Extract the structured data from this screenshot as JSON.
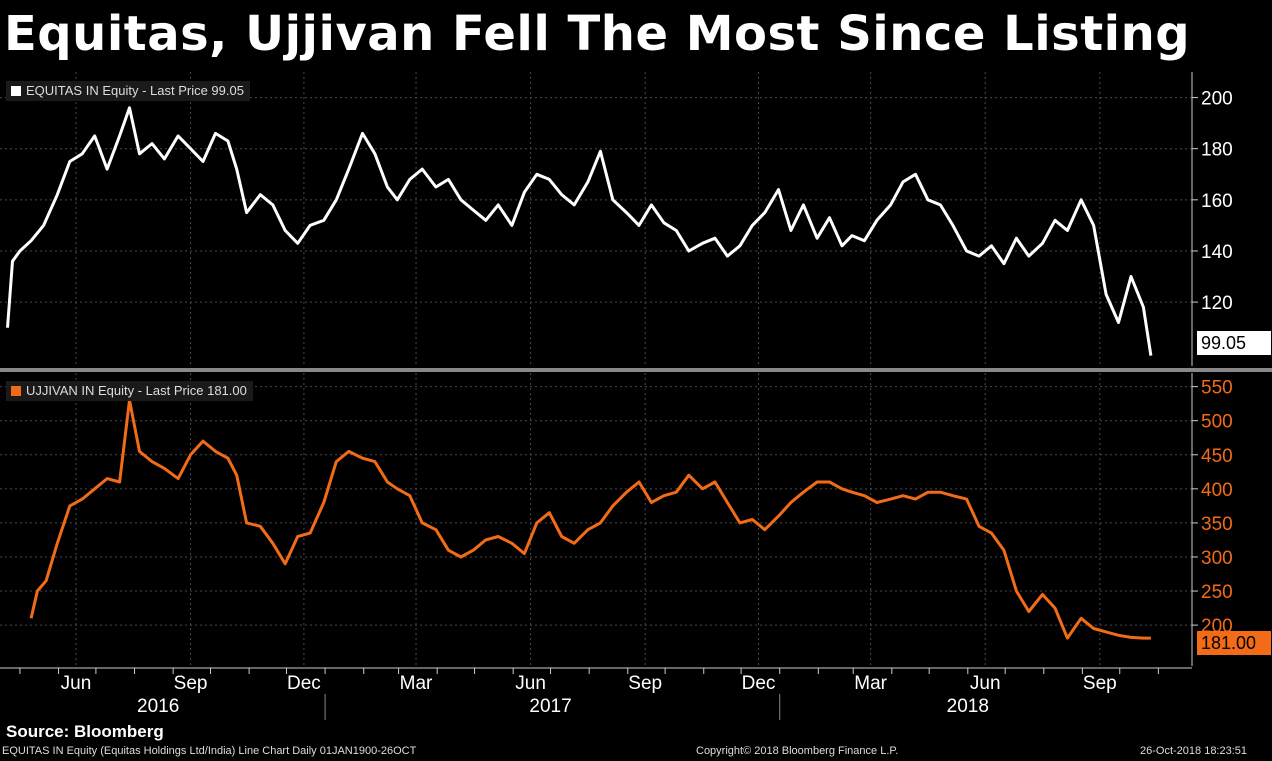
{
  "title": "Equitas, Ujjivan Fell The Most Since Listing",
  "source": "Source: Bloomberg",
  "footer": {
    "left": "EQUITAS IN Equity (Equitas Holdings Ltd/India) Line Chart  Daily 01JAN1900-26OCT",
    "middle": "Copyright© 2018 Bloomberg Finance L.P.",
    "right": "26-Oct-2018 18:23:51"
  },
  "colors": {
    "equitas": "#ffffff",
    "ujjivan": "#f26b16",
    "background": "#000000",
    "grid": "#555555",
    "divider": "#888888"
  },
  "chart_data": [
    {
      "type": "line",
      "series": [
        {
          "name": "EQUITAS IN Equity - Last Price 99.05",
          "color": "#ffffff"
        }
      ],
      "legend": "EQUITAS IN Equity - Last Price 99.05",
      "last_value_label": "99.05",
      "ylim": [
        95,
        210
      ],
      "yticks": [
        120,
        140,
        160,
        180,
        200
      ],
      "x": [
        "2016-04-21",
        "2016-04-25",
        "2016-05-01",
        "2016-05-10",
        "2016-05-20",
        "2016-05-31",
        "2016-06-10",
        "2016-06-20",
        "2016-06-30",
        "2016-07-10",
        "2016-07-20",
        "2016-07-28",
        "2016-08-05",
        "2016-08-15",
        "2016-08-25",
        "2016-09-05",
        "2016-09-15",
        "2016-09-25",
        "2016-10-05",
        "2016-10-15",
        "2016-10-22",
        "2016-10-30",
        "2016-11-10",
        "2016-11-20",
        "2016-11-30",
        "2016-12-10",
        "2016-12-20",
        "2016-12-31",
        "2017-01-10",
        "2017-01-20",
        "2017-01-31",
        "2017-02-10",
        "2017-02-20",
        "2017-02-28",
        "2017-03-10",
        "2017-03-20",
        "2017-03-31",
        "2017-04-10",
        "2017-04-20",
        "2017-04-30",
        "2017-05-10",
        "2017-05-20",
        "2017-05-31",
        "2017-06-10",
        "2017-06-20",
        "2017-06-30",
        "2017-07-10",
        "2017-07-20",
        "2017-07-31",
        "2017-08-10",
        "2017-08-20",
        "2017-08-31",
        "2017-09-10",
        "2017-09-20",
        "2017-09-30",
        "2017-10-10",
        "2017-10-20",
        "2017-10-31",
        "2017-11-10",
        "2017-11-20",
        "2017-11-30",
        "2017-12-10",
        "2017-12-20",
        "2017-12-31",
        "2018-01-10",
        "2018-01-20",
        "2018-01-31",
        "2018-02-10",
        "2018-02-20",
        "2018-02-28",
        "2018-03-10",
        "2018-03-20",
        "2018-03-31",
        "2018-04-10",
        "2018-04-20",
        "2018-04-30",
        "2018-05-10",
        "2018-05-20",
        "2018-05-31",
        "2018-06-10",
        "2018-06-20",
        "2018-06-30",
        "2018-07-10",
        "2018-07-20",
        "2018-07-31",
        "2018-08-10",
        "2018-08-20",
        "2018-08-31",
        "2018-09-10",
        "2018-09-20",
        "2018-09-30",
        "2018-10-10",
        "2018-10-20",
        "2018-10-26"
      ],
      "values": [
        110,
        136,
        140,
        144,
        150,
        162,
        175,
        178,
        185,
        172,
        185,
        196,
        178,
        182,
        176,
        185,
        180,
        175,
        186,
        183,
        172,
        155,
        162,
        158,
        148,
        143,
        150,
        152,
        160,
        172,
        186,
        178,
        165,
        160,
        168,
        172,
        165,
        168,
        160,
        156,
        152,
        158,
        150,
        163,
        170,
        168,
        162,
        158,
        167,
        179,
        160,
        155,
        150,
        158,
        151,
        148,
        140,
        143,
        145,
        138,
        142,
        150,
        155,
        164,
        148,
        158,
        145,
        153,
        142,
        146,
        144,
        152,
        158,
        167,
        170,
        160,
        158,
        150,
        140,
        138,
        142,
        135,
        145,
        138,
        143,
        152,
        148,
        160,
        150,
        123,
        112,
        130,
        118,
        99.05
      ]
    },
    {
      "type": "line",
      "series": [
        {
          "name": "UJJIVAN IN Equity - Last Price 181.00",
          "color": "#f26b16"
        }
      ],
      "legend": "UJJIVAN IN Equity - Last Price 181.00",
      "last_value_label": "181.00",
      "ylim": [
        140,
        570
      ],
      "yticks": [
        200,
        250,
        300,
        350,
        400,
        450,
        500,
        550
      ],
      "x": [
        "2016-05-10",
        "2016-05-15",
        "2016-05-22",
        "2016-05-31",
        "2016-06-10",
        "2016-06-20",
        "2016-06-30",
        "2016-07-10",
        "2016-07-20",
        "2016-07-28",
        "2016-08-05",
        "2016-08-15",
        "2016-08-25",
        "2016-09-05",
        "2016-09-15",
        "2016-09-25",
        "2016-10-05",
        "2016-10-15",
        "2016-10-22",
        "2016-10-30",
        "2016-11-10",
        "2016-11-20",
        "2016-11-30",
        "2016-12-10",
        "2016-12-20",
        "2016-12-31",
        "2017-01-10",
        "2017-01-20",
        "2017-01-31",
        "2017-02-10",
        "2017-02-20",
        "2017-02-28",
        "2017-03-10",
        "2017-03-20",
        "2017-03-31",
        "2017-04-10",
        "2017-04-20",
        "2017-04-30",
        "2017-05-10",
        "2017-05-20",
        "2017-05-31",
        "2017-06-10",
        "2017-06-20",
        "2017-06-30",
        "2017-07-10",
        "2017-07-20",
        "2017-07-31",
        "2017-08-10",
        "2017-08-20",
        "2017-08-31",
        "2017-09-10",
        "2017-09-20",
        "2017-09-30",
        "2017-10-10",
        "2017-10-20",
        "2017-10-31",
        "2017-11-10",
        "2017-11-20",
        "2017-11-30",
        "2017-12-10",
        "2017-12-20",
        "2017-12-31",
        "2018-01-10",
        "2018-01-20",
        "2018-01-31",
        "2018-02-10",
        "2018-02-20",
        "2018-02-28",
        "2018-03-10",
        "2018-03-20",
        "2018-03-31",
        "2018-04-10",
        "2018-04-20",
        "2018-04-30",
        "2018-05-10",
        "2018-05-20",
        "2018-05-31",
        "2018-06-10",
        "2018-06-20",
        "2018-06-30",
        "2018-07-10",
        "2018-07-20",
        "2018-07-31",
        "2018-08-10",
        "2018-08-20",
        "2018-08-31",
        "2018-09-10",
        "2018-09-20",
        "2018-09-30",
        "2018-10-10",
        "2018-10-20",
        "2018-10-26"
      ],
      "values": [
        210,
        250,
        265,
        320,
        375,
        385,
        400,
        415,
        410,
        530,
        455,
        440,
        430,
        415,
        450,
        470,
        455,
        445,
        420,
        350,
        345,
        320,
        290,
        330,
        335,
        380,
        440,
        455,
        445,
        440,
        410,
        400,
        390,
        350,
        340,
        310,
        300,
        310,
        325,
        330,
        320,
        305,
        350,
        365,
        330,
        320,
        340,
        350,
        375,
        395,
        410,
        380,
        390,
        395,
        420,
        400,
        410,
        380,
        350,
        355,
        340,
        360,
        380,
        395,
        410,
        410,
        400,
        395,
        390,
        380,
        385,
        390,
        385,
        395,
        395,
        390,
        385,
        345,
        335,
        310,
        250,
        220,
        245,
        225,
        181,
        210,
        195,
        190,
        185,
        182,
        181,
        181
      ]
    }
  ],
  "x_axis": {
    "months": [
      "Jun",
      "Sep",
      "Dec",
      "Mar",
      "Jun",
      "Sep",
      "Dec",
      "Mar",
      "Jun",
      "Sep"
    ],
    "years": [
      "2016",
      "2017",
      "2018"
    ]
  }
}
